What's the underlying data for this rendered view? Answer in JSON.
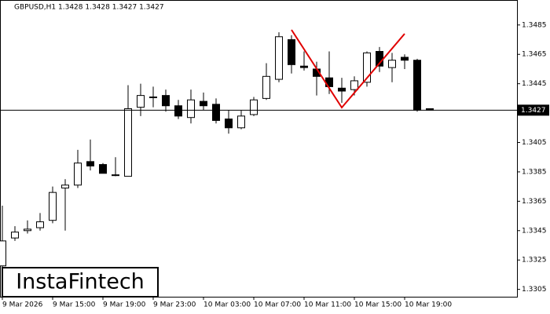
{
  "chart_data": {
    "type": "candlestick",
    "title": "GBPUSD,H1  1.3428 1.3428 1.3427 1.3427",
    "categories": [
      "9 Mar 2026",
      null,
      null,
      null,
      "9 Mar 15:00",
      null,
      null,
      null,
      "9 Mar 19:00",
      null,
      null,
      null,
      "9 Mar 23:00",
      null,
      null,
      null,
      "10 Mar 03:00",
      null,
      null,
      null,
      "10 Mar 07:00",
      null,
      null,
      null,
      "10 Mar 11:00",
      null,
      null,
      null,
      "10 Mar 15:00",
      null,
      null,
      null,
      "10 Mar 19:00",
      null,
      null
    ],
    "open": [
      1.3321,
      1.334,
      1.3345,
      1.3347,
      1.3352,
      1.3374,
      1.3376,
      1.3392,
      1.339,
      1.3383,
      1.3382,
      1.3429,
      1.3436,
      1.3437,
      1.343,
      1.3422,
      1.3433,
      1.3431,
      1.3421,
      1.3415,
      1.3424,
      1.3435,
      1.3448,
      1.3475,
      1.3457,
      1.3455,
      1.3449,
      1.3442,
      1.3441,
      1.3446,
      1.3467,
      1.3456,
      1.3463,
      1.3461,
      1.3428
    ],
    "high": [
      1.3362,
      1.3348,
      1.3352,
      1.3357,
      1.3375,
      1.338,
      1.34,
      1.3407,
      1.3391,
      1.3395,
      1.3444,
      1.3445,
      1.3443,
      1.3441,
      1.3434,
      1.3441,
      1.3439,
      1.3435,
      1.3427,
      1.3427,
      1.3436,
      1.3459,
      1.348,
      1.3478,
      1.3467,
      1.346,
      1.3467,
      1.3449,
      1.345,
      1.3467,
      1.347,
      1.3466,
      1.3465,
      1.3462,
      1.3428
    ],
    "low": [
      1.3318,
      1.3338,
      1.3343,
      1.3345,
      1.335,
      1.3345,
      1.3374,
      1.3386,
      1.3384,
      1.3382,
      1.3382,
      1.3423,
      1.3429,
      1.3426,
      1.3421,
      1.3418,
      1.3427,
      1.3418,
      1.3411,
      1.3414,
      1.3423,
      1.3434,
      1.3446,
      1.3452,
      1.3454,
      1.3437,
      1.3438,
      1.3432,
      1.3437,
      1.3443,
      1.3453,
      1.3446,
      1.3455,
      1.3426,
      1.3427
    ],
    "close": [
      1.3338,
      1.3344,
      1.3346,
      1.3351,
      1.3371,
      1.3376,
      1.3391,
      1.3389,
      1.3384,
      1.3383,
      1.3428,
      1.3437,
      1.3436,
      1.343,
      1.3423,
      1.3434,
      1.343,
      1.342,
      1.3415,
      1.3423,
      1.3434,
      1.345,
      1.3477,
      1.3458,
      1.3456,
      1.345,
      1.3443,
      1.344,
      1.3447,
      1.3466,
      1.3457,
      1.3461,
      1.3461,
      1.3427,
      1.3427
    ],
    "ylim": [
      1.33,
      1.3502
    ],
    "yticks": [
      1.3305,
      1.3325,
      1.3345,
      1.3365,
      1.3385,
      1.3405,
      1.3445,
      1.3465,
      1.3485
    ],
    "current_price": 1.3427,
    "up_color": "#ffffff",
    "down_color": "#000000",
    "watermark": "InstaFintech"
  }
}
